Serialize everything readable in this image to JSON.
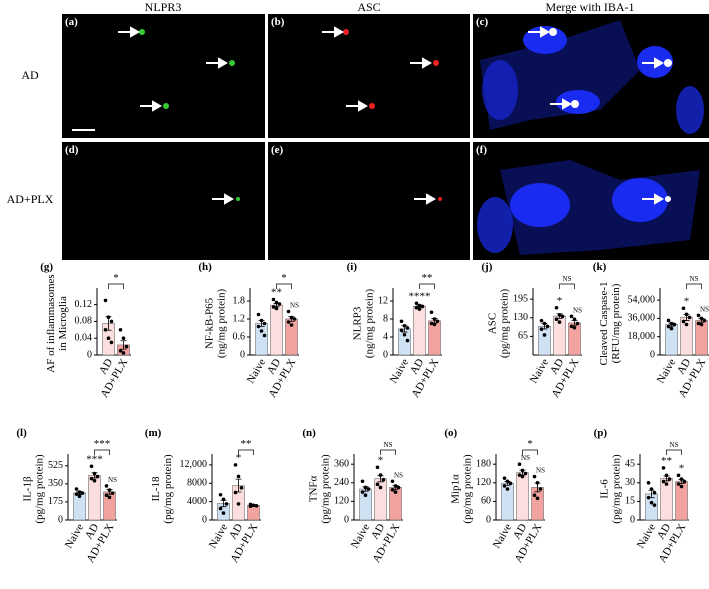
{
  "image_panels": {
    "column_titles": [
      "NLPR3",
      "ASC",
      "Merge with IBA-1"
    ],
    "row_labels": [
      "AD",
      "AD+PLX"
    ],
    "letters": [
      "(a)",
      "(b)",
      "(c)",
      "(d)",
      "(e)",
      "(f)"
    ]
  },
  "chart_data": [
    {
      "type": "bar",
      "panel": "(g)",
      "y_label": [
        "AF of inflammasomes",
        "in Microglia"
      ],
      "categories": [
        "AD",
        "AD+PLX"
      ],
      "colors": [
        "#fbdedd",
        "#f2a39f"
      ],
      "values": [
        0.075,
        0.024
      ],
      "errors": [
        0.016,
        0.01
      ],
      "points": [
        [
          0.13,
          0.09,
          0.08,
          0.06,
          0.04,
          0.03
        ],
        [
          0.06,
          0.04,
          0.02,
          0.01,
          0.005
        ]
      ],
      "ylim": [
        0,
        0.15
      ],
      "yticks": [
        0,
        0.04,
        0.08,
        0.12
      ],
      "sig_labels": [
        null,
        null
      ],
      "brackets": [
        {
          "between": [
            "AD",
            "AD+PLX"
          ],
          "label": "*"
        }
      ]
    },
    {
      "type": "bar",
      "panel": "(h)",
      "y_label": [
        "NF-kB-P65",
        "(ng/mg protein)"
      ],
      "categories": [
        "Naive",
        "AD",
        "AD+PLX"
      ],
      "colors": [
        "#cfe2f3",
        "#fbdedd",
        "#f2a39f"
      ],
      "values": [
        1.05,
        1.66,
        1.2
      ],
      "errors": [
        0.1,
        0.05,
        0.08
      ],
      "points": [
        [
          1.35,
          1.15,
          1.05,
          0.95,
          0.8,
          0.65
        ],
        [
          1.85,
          1.75,
          1.7,
          1.6,
          1.55
        ],
        [
          1.45,
          1.25,
          1.2,
          1.1,
          1.0
        ]
      ],
      "ylim": [
        0,
        2.1
      ],
      "yticks": [
        0,
        0.6,
        1.2,
        1.8
      ],
      "sig_labels": [
        null,
        "**",
        "NS"
      ],
      "brackets": [
        {
          "between": [
            "AD",
            "AD+PLX"
          ],
          "label": "*"
        }
      ]
    },
    {
      "type": "bar",
      "panel": "(i)",
      "y_label": [
        "NLRP3",
        "(ng/mg protein)"
      ],
      "categories": [
        "Naive",
        "AD",
        "AD+PLX"
      ],
      "colors": [
        "#cfe2f3",
        "#fbdedd",
        "#f2a39f"
      ],
      "values": [
        5.8,
        10.8,
        7.6
      ],
      "errors": [
        0.7,
        0.3,
        0.5
      ],
      "points": [
        [
          7.5,
          6.5,
          6,
          5.5,
          4.5,
          3.2
        ],
        [
          11.5,
          11,
          10.8,
          10.5,
          10.2
        ],
        [
          9.5,
          8,
          7.5,
          7,
          6.8
        ]
      ],
      "ylim": [
        0,
        14
      ],
      "yticks": [
        0,
        4,
        8,
        12
      ],
      "sig_labels": [
        null,
        "****",
        null
      ],
      "brackets": [
        {
          "between": [
            "AD",
            "AD+PLX"
          ],
          "label": "**"
        }
      ]
    },
    {
      "type": "bar",
      "panel": "(j)",
      "y_label": [
        "ASC",
        "(pg/mg protein)"
      ],
      "categories": [
        "Naive",
        "AD",
        "AD+PLX"
      ],
      "colors": [
        "#cfe2f3",
        "#fbdedd",
        "#f2a39f"
      ],
      "values": [
        100,
        136,
        112
      ],
      "errors": [
        9,
        8,
        8
      ],
      "points": [
        [
          120,
          110,
          100,
          90,
          70
        ],
        [
          165,
          140,
          135,
          125,
          115
        ],
        [
          135,
          125,
          110,
          100,
          95
        ]
      ],
      "ylim": [
        0,
        220
      ],
      "yticks": [
        65,
        130,
        195
      ],
      "sig_labels": [
        null,
        "*",
        "NS"
      ],
      "brackets": [
        {
          "between": [
            "AD",
            "AD+PLX"
          ],
          "label": "NS"
        }
      ]
    },
    {
      "type": "bar",
      "panel": "(k)",
      "y_label": [
        "Cleaved Caspase-1",
        "(RFU/mg protein)"
      ],
      "categories": [
        "Naive",
        "AD",
        "AD+PLX"
      ],
      "colors": [
        "#cfe2f3",
        "#fbdedd",
        "#f2a39f"
      ],
      "values": [
        30000,
        37000,
        34000
      ],
      "errors": [
        1500,
        3000,
        1800
      ],
      "points": [
        [
          34000,
          31000,
          30000,
          28000,
          26000
        ],
        [
          46000,
          40000,
          37000,
          33000,
          30000
        ],
        [
          39000,
          36000,
          34000,
          31000,
          30000
        ]
      ],
      "ylim": [
        0,
        62000
      ],
      "yticks": [
        0,
        {
          "value": 18000,
          "label": "18,000"
        },
        {
          "value": 36000,
          "label": "36,000"
        },
        {
          "value": 54000,
          "label": "54,000"
        }
      ],
      "sig_labels": [
        null,
        "*",
        "NS"
      ],
      "brackets": [
        {
          "between": [
            "AD",
            "AD+PLX"
          ],
          "label": "NS"
        }
      ]
    },
    {
      "type": "bar",
      "panel": "(l)",
      "y_label": [
        "IL-1β",
        "(pg/mg protein)"
      ],
      "categories": [
        "Naive",
        "AD",
        "AD+PLX"
      ],
      "colors": [
        "#cfe2f3",
        "#fbdedd",
        "#f2a39f"
      ],
      "values": [
        262,
        432,
        272
      ],
      "errors": [
        14,
        25,
        22
      ],
      "points": [
        [
          300,
          270,
          260,
          250,
          230
        ],
        [
          520,
          450,
          420,
          400,
          380
        ],
        [
          330,
          290,
          260,
          240,
          220
        ]
      ],
      "ylim": [
        0,
        600
      ],
      "yticks": [
        0,
        175,
        350,
        525
      ],
      "sig_labels": [
        null,
        "***",
        "NS"
      ],
      "brackets": [
        {
          "between": [
            "AD",
            "AD+PLX"
          ],
          "label": "***"
        }
      ]
    },
    {
      "type": "bar",
      "panel": "(m)",
      "y_label": [
        "IL-18",
        "(pg/mg protein)"
      ],
      "categories": [
        "Naive",
        "AD",
        "AD+PLX"
      ],
      "colors": [
        "#cfe2f3",
        "#fbdedd",
        "#f2a39f"
      ],
      "values": [
        3600,
        7500,
        3200
      ],
      "errors": [
        700,
        1400,
        150
      ],
      "points": [
        [
          5500,
          4500,
          3500,
          2500,
          1500
        ],
        [
          12000,
          9500,
          7000,
          6000,
          3500
        ],
        [
          3400,
          3200,
          3100,
          3000
        ]
      ],
      "ylim": [
        0,
        13500
      ],
      "yticks": [
        0,
        4000,
        8000,
        {
          "value": 12000,
          "label": "12,000"
        }
      ],
      "sig_labels": [
        null,
        "*",
        null
      ],
      "brackets": [
        {
          "between": [
            "AD",
            "AD+PLX"
          ],
          "label": "**"
        }
      ]
    },
    {
      "type": "bar",
      "panel": "(n)",
      "y_label": [
        "TNFα",
        "(pg/mg protein)"
      ],
      "categories": [
        "Naive",
        "AD",
        "AD+PLX"
      ],
      "colors": [
        "#cfe2f3",
        "#fbdedd",
        "#f2a39f"
      ],
      "values": [
        200,
        266,
        210
      ],
      "errors": [
        14,
        20,
        12
      ],
      "points": [
        [
          250,
          210,
          200,
          180,
          160
        ],
        [
          340,
          290,
          260,
          230,
          210
        ],
        [
          250,
          220,
          210,
          195,
          180
        ]
      ],
      "ylim": [
        0,
        400
      ],
      "yticks": [
        0,
        120,
        240,
        360
      ],
      "sig_labels": [
        null,
        "*",
        "NS"
      ],
      "brackets": [
        {
          "between": [
            "AD",
            "AD+PLX"
          ],
          "label": "NS"
        }
      ]
    },
    {
      "type": "bar",
      "panel": "(o)",
      "y_label": [
        "Mip1α",
        "(pg/mg protein)"
      ],
      "categories": [
        "Naive",
        "AD",
        "AD+PLX"
      ],
      "colors": [
        "#cfe2f3",
        "#fbdedd",
        "#f2a39f"
      ],
      "values": [
        118,
        153,
        105
      ],
      "errors": [
        6,
        8,
        14
      ],
      "points": [
        [
          135,
          125,
          118,
          110,
          100
        ],
        [
          180,
          160,
          150,
          145,
          140
        ],
        [
          140,
          120,
          100,
          80,
          70
        ]
      ],
      "ylim": [
        0,
        200
      ],
      "yticks": [
        0,
        60,
        120,
        180
      ],
      "sig_labels": [
        null,
        "NS",
        "NS"
      ],
      "brackets": [
        {
          "between": [
            "AD",
            "AD+PLX"
          ],
          "label": "*"
        }
      ]
    },
    {
      "type": "bar",
      "panel": "(p)",
      "y_label": [
        "IL-6",
        "(pg/mg protein)"
      ],
      "categories": [
        "Naive",
        "AD",
        "AD+PLX"
      ],
      "colors": [
        "#cfe2f3",
        "#fbdedd",
        "#f2a39f"
      ],
      "values": [
        21,
        33.5,
        31
      ],
      "errors": [
        3,
        2,
        1.5
      ],
      "points": [
        [
          30,
          25,
          22,
          18,
          14,
          12
        ],
        [
          42,
          36,
          33,
          31,
          29
        ],
        [
          36,
          33,
          31,
          29,
          27
        ]
      ],
      "ylim": [
        0,
        50
      ],
      "yticks": [
        0,
        15,
        30,
        45
      ],
      "sig_labels": [
        null,
        "**",
        "*"
      ],
      "brackets": [
        {
          "between": [
            "AD",
            "AD+PLX"
          ],
          "label": "NS"
        }
      ]
    }
  ]
}
